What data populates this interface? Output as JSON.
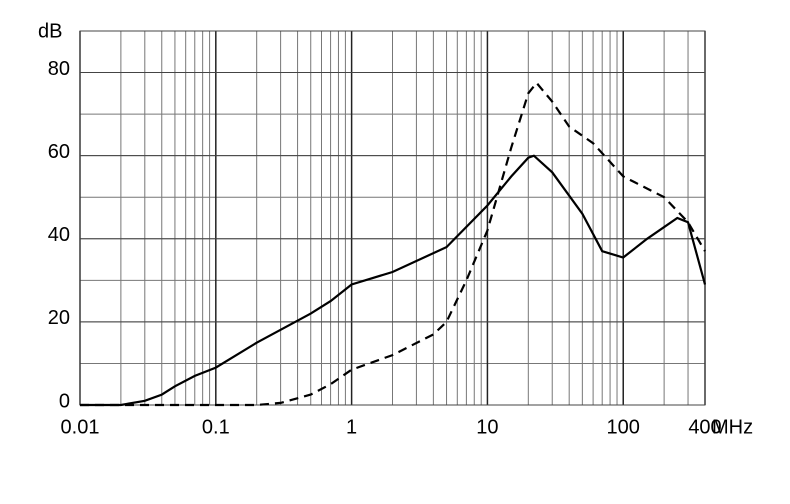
{
  "chart_data": {
    "type": "line",
    "log_x": true,
    "grid": true,
    "minor_grid": true,
    "y_label": "dB",
    "x_label": "MHz",
    "xlim": [
      0.01,
      400
    ],
    "xticks": [
      0.01,
      0.1,
      1,
      10,
      100,
      400
    ],
    "ylim": [
      0,
      90
    ],
    "yticks": [
      0,
      20,
      40,
      60,
      80
    ],
    "ygrid_step": 10,
    "series": [
      {
        "color": "#000000",
        "dashed": false,
        "x": [
          0.01,
          0.02,
          0.03,
          0.04,
          0.05,
          0.07,
          0.1,
          0.2,
          0.5,
          0.7,
          1,
          2,
          5,
          10,
          15,
          20,
          22,
          30,
          50,
          70,
          100,
          150,
          250,
          300,
          400
        ],
        "values": [
          0,
          0,
          1,
          2.5,
          4.5,
          7,
          9,
          15,
          22,
          25,
          29,
          32,
          38,
          48,
          55,
          59.5,
          60,
          56,
          46,
          37,
          35.5,
          40,
          45,
          44,
          29
        ]
      },
      {
        "color": "#000000",
        "dashed": true,
        "x": [
          0.01,
          0.2,
          0.3,
          0.5,
          0.7,
          1,
          2,
          4,
          5,
          7,
          10,
          15,
          20,
          23,
          30,
          40,
          60,
          100,
          200,
          300,
          400
        ],
        "values": [
          0,
          0,
          0.5,
          2.5,
          5,
          8.5,
          12,
          17,
          20,
          30,
          42,
          62,
          75,
          77.5,
          73,
          67,
          63,
          55,
          50,
          44,
          37
        ]
      }
    ]
  }
}
